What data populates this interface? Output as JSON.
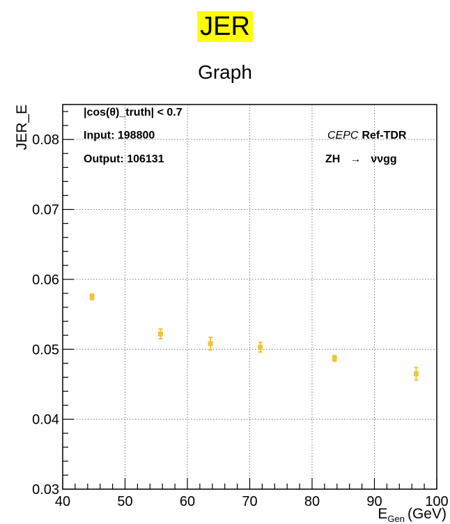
{
  "header": {
    "label": "JER"
  },
  "chart_data": {
    "type": "scatter",
    "title": "Graph",
    "xlabel_main": "E",
    "xlabel_sub": "Gen",
    "xlabel_unit": "(GeV)",
    "ylabel": "JER_E",
    "xlim": [
      40,
      100
    ],
    "ylim": [
      0.03,
      0.085
    ],
    "x_ticks": [
      40,
      50,
      60,
      70,
      80,
      90,
      100
    ],
    "x_tick_labels": [
      "40",
      "50",
      "60",
      "70",
      "80",
      "90",
      "100"
    ],
    "y_ticks": [
      0.03,
      0.04,
      0.05,
      0.06,
      0.07,
      0.08
    ],
    "y_tick_labels": [
      "0.03",
      "0.04",
      "0.05",
      "0.06",
      "0.07",
      "0.08"
    ],
    "grid": true,
    "marker_color": "#f0c43a",
    "series": [
      {
        "points": [
          {
            "x": 44.7,
            "y": 0.0575,
            "err": 0.0004
          },
          {
            "x": 55.7,
            "y": 0.0522,
            "err": 0.0007
          },
          {
            "x": 63.7,
            "y": 0.0508,
            "err": 0.0009
          },
          {
            "x": 71.7,
            "y": 0.0503,
            "err": 0.0007
          },
          {
            "x": 83.6,
            "y": 0.0487,
            "err": 0.0004
          },
          {
            "x": 96.7,
            "y": 0.0465,
            "err": 0.0009
          }
        ]
      }
    ],
    "annotations": {
      "cut": "|cos(θ)_truth| < 0.7",
      "input": "Input: 198800",
      "output": "Output: 106131",
      "experiment": "CEPC",
      "ref": "Ref-TDR",
      "process_left": "ZH",
      "process_arrow": "→",
      "process_right": "ννgg"
    }
  }
}
